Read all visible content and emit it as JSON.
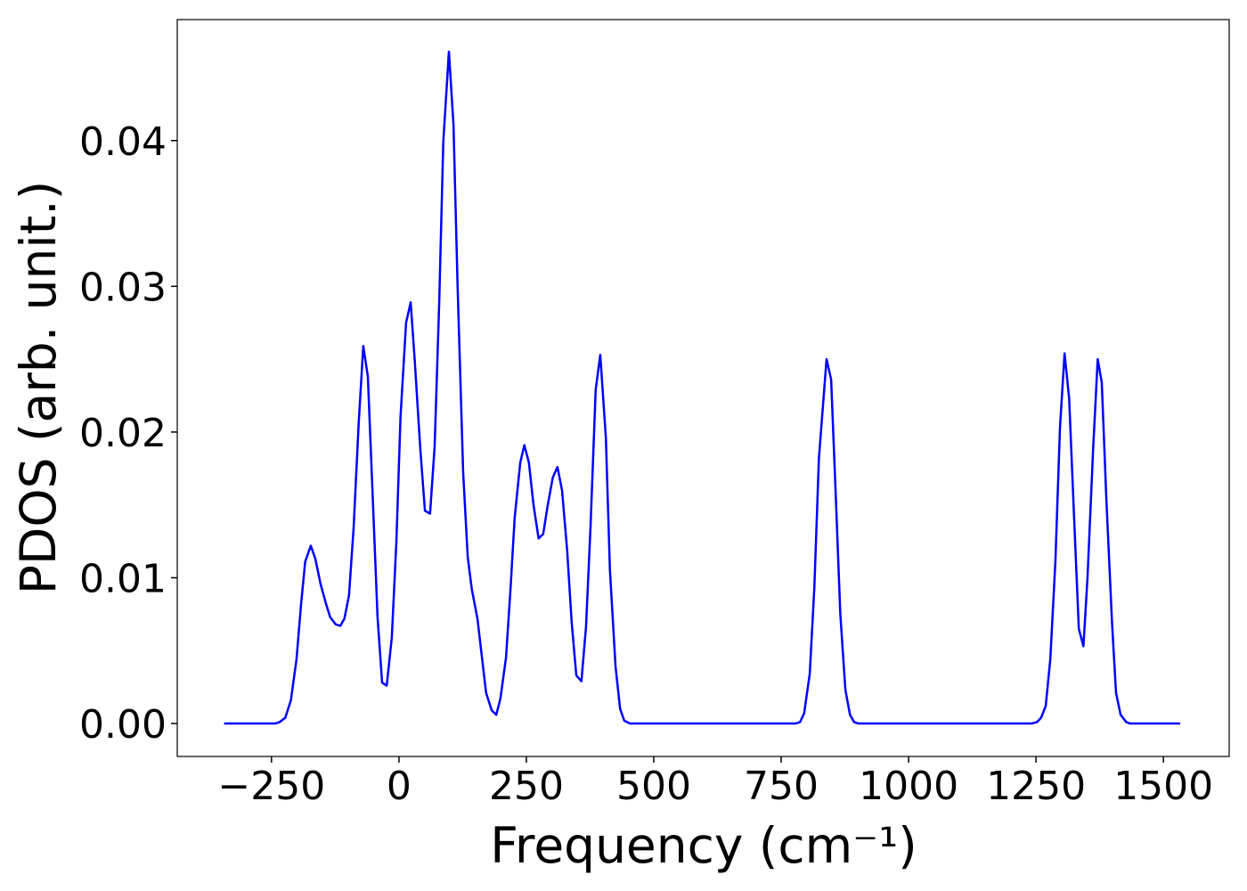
{
  "chart_data": {
    "type": "line",
    "x_label": "Frequency (cm⁻¹)",
    "y_label": "PDOS (arb. unit.)",
    "x": [
      -343,
      -243,
      -234,
      -223,
      -212,
      -201,
      -192,
      -184,
      -173,
      -164,
      -154,
      -143,
      -135,
      -124,
      -115,
      -107,
      -98,
      -89,
      -79,
      -70,
      -61,
      -52,
      -42,
      -33,
      -24,
      -14,
      -5,
      3,
      14,
      23,
      31,
      42,
      51,
      61,
      70,
      79,
      87,
      98,
      107,
      115,
      126,
      135,
      143,
      154,
      163,
      171,
      182,
      191,
      199,
      210,
      219,
      227,
      238,
      246,
      255,
      264,
      274,
      283,
      292,
      302,
      311,
      320,
      330,
      339,
      348,
      358,
      367,
      376,
      386,
      395,
      406,
      414,
      425,
      434,
      442,
      453,
      778,
      787,
      795,
      806,
      815,
      824,
      839,
      848,
      857,
      866,
      876,
      885,
      893,
      902,
      1241,
      1252,
      1260,
      1269,
      1278,
      1288,
      1297,
      1306,
      1315,
      1325,
      1334,
      1343,
      1351,
      1362,
      1371,
      1379,
      1388,
      1399,
      1407,
      1416,
      1427,
      1435,
      1533
    ],
    "series": [
      {
        "name": "PDOS",
        "color": "#0000ff",
        "values": [
          0,
          0,
          0.0001,
          0.0004,
          0.0016,
          0.0044,
          0.0082,
          0.0111,
          0.0122,
          0.0113,
          0.0096,
          0.0082,
          0.0073,
          0.0068,
          0.0067,
          0.0072,
          0.0088,
          0.0134,
          0.0206,
          0.0259,
          0.0238,
          0.016,
          0.0073,
          0.0028,
          0.0026,
          0.0059,
          0.0125,
          0.021,
          0.0275,
          0.0289,
          0.0249,
          0.0188,
          0.0146,
          0.0144,
          0.019,
          0.0289,
          0.0399,
          0.0461,
          0.0411,
          0.0301,
          0.0172,
          0.0114,
          0.0092,
          0.0072,
          0.0045,
          0.0021,
          0.0009,
          0.0006,
          0.0017,
          0.0045,
          0.0093,
          0.0141,
          0.0179,
          0.0191,
          0.0179,
          0.015,
          0.0127,
          0.013,
          0.015,
          0.0169,
          0.0176,
          0.016,
          0.0119,
          0.0069,
          0.0033,
          0.0029,
          0.0066,
          0.0136,
          0.0229,
          0.0253,
          0.0196,
          0.0105,
          0.0039,
          0.001,
          0.0002,
          0,
          0,
          0.0001,
          0.0007,
          0.0034,
          0.0093,
          0.0182,
          0.025,
          0.0236,
          0.0157,
          0.0075,
          0.0023,
          0.0006,
          0.0001,
          0,
          0,
          0.0001,
          0.0004,
          0.0012,
          0.0044,
          0.0111,
          0.0203,
          0.0254,
          0.0223,
          0.0139,
          0.0065,
          0.0053,
          0.01,
          0.0188,
          0.025,
          0.0234,
          0.0154,
          0.007,
          0.0021,
          0.0006,
          0.0001,
          0,
          0
        ]
      }
    ],
    "xlim": [
      -435,
      1629
    ],
    "ylim": [
      -0.00226,
      0.0483
    ],
    "xticks": [
      {
        "value": -250,
        "label": "−250"
      },
      0,
      250,
      500,
      750,
      1000,
      1250,
      1500
    ],
    "yticks": [
      {
        "value": 0,
        "label": "0.00"
      },
      0.01,
      0.02,
      0.03,
      0.04
    ],
    "grid": false
  }
}
